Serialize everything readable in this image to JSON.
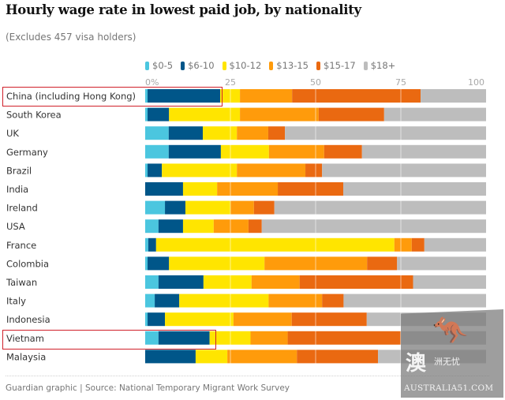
{
  "title": "Hourly wage rate in lowest paid job, by nationality",
  "subtitle": "(Excludes 457 visa holders)",
  "footer": "Guardian graphic | Source: National Temporary Migrant Work Survey",
  "watermark": {
    "cn_big": "澳",
    "cn_small": "洲无忧",
    "text": "AUSTRALIA51.COM",
    "icon": "kangaroo-icon"
  },
  "highlighted_rows": [
    "China (including Hong Kong)",
    "Vietnam"
  ],
  "colors": {
    "$0-5": "#4bc6df",
    "$6-10": "#005689",
    "$10-12": "#ffe500",
    "$13-15": "#ff9b0b",
    "$15-17": "#ea6911",
    "$18+": "#bdbdbd",
    "highlight": "#d0202a"
  },
  "chart_data": {
    "type": "bar",
    "orientation": "horizontal",
    "stacked": true,
    "title": "Hourly wage rate in lowest paid job, by nationality",
    "subtitle": "(Excludes 457 visa holders)",
    "xlabel": "",
    "ylabel": "",
    "xlim": [
      0,
      100
    ],
    "x_ticks": [
      "0%",
      "25",
      "50",
      "75",
      "100"
    ],
    "x_tick_values": [
      0,
      25,
      50,
      75,
      100
    ],
    "grid": true,
    "legend_position": "top",
    "categories": [
      "China (including Hong Kong)",
      "South Korea",
      "UK",
      "Germany",
      "Brazil",
      "India",
      "Ireland",
      "USA",
      "France",
      "Colombia",
      "Taiwan",
      "Italy",
      "Indonesia",
      "Vietnam",
      "Malaysia"
    ],
    "series": [
      {
        "name": "$0-5",
        "values": [
          0.7,
          0.7,
          6.9,
          6.9,
          0.7,
          0,
          5.8,
          3.9,
          0.9,
          0.7,
          3.9,
          2.8,
          0.7,
          3.9,
          0
        ]
      },
      {
        "name": "$6-10",
        "values": [
          21.3,
          6.3,
          10.0,
          15.3,
          4.2,
          11.1,
          6.0,
          7.2,
          2.3,
          6.3,
          13.2,
          7.2,
          5.1,
          15.0,
          14.8
        ]
      },
      {
        "name": "$10-12",
        "values": [
          5.8,
          20.8,
          10.0,
          14.1,
          22.0,
          10.0,
          13.2,
          9.0,
          69.9,
          28.0,
          14.1,
          26.2,
          20.1,
          12.0,
          9.3
        ]
      },
      {
        "name": "$13-15",
        "values": [
          15.3,
          23.1,
          9.2,
          16.2,
          20.1,
          17.8,
          6.9,
          10.2,
          5.1,
          30.1,
          14.1,
          15.7,
          17.1,
          10.9,
          20.4
        ]
      },
      {
        "name": "$15-17",
        "values": [
          37.7,
          19.2,
          4.9,
          11.1,
          4.9,
          19.2,
          6.0,
          3.9,
          3.7,
          8.8,
          33.3,
          6.3,
          22.0,
          33.1,
          23.8
        ]
      },
      {
        "name": "$18+",
        "values": [
          19.2,
          29.9,
          59.0,
          36.4,
          48.1,
          41.9,
          62.1,
          65.8,
          18.1,
          26.1,
          21.4,
          41.8,
          35.0,
          25.1,
          31.7
        ]
      }
    ]
  }
}
